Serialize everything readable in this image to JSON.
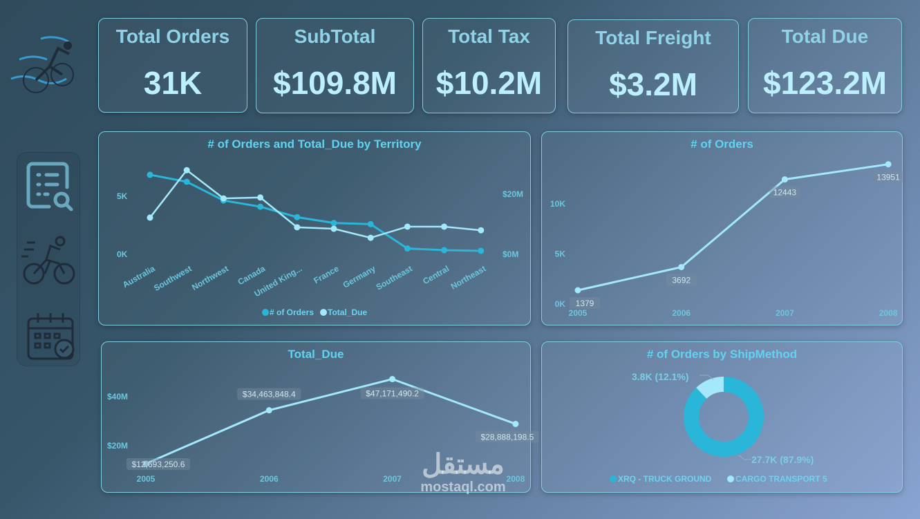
{
  "kpis": [
    {
      "title": "Total Orders",
      "value": "31K"
    },
    {
      "title": "SubTotal",
      "value": "$109.8M"
    },
    {
      "title": "Total Tax",
      "value": "$10.2M"
    },
    {
      "title": "Total Freight",
      "value": "$3.2M"
    },
    {
      "title": "Total Due",
      "value": "$123.2M"
    }
  ],
  "sidebar": {
    "icons": [
      "report-search-icon",
      "cyclist-icon",
      "calendar-check-icon"
    ]
  },
  "watermark": {
    "arabic": "مستقل",
    "latin": "mostaql.com"
  },
  "colors": {
    "primary": "#29b6d9",
    "secondary": "#a4e8fb",
    "title": "#5fd3f0",
    "border": "#7fcfe0"
  },
  "chart_data": [
    {
      "type": "line",
      "title": "# of Orders and Total_Due by Territory",
      "categories": [
        "Australia",
        "Southwest",
        "Northwest",
        "Canada",
        "United King...",
        "France",
        "Germany",
        "Southeast",
        "Central",
        "Northeast"
      ],
      "series": [
        {
          "name": "# of Orders",
          "axis": "left",
          "color": "#29b6d9",
          "values": [
            6850,
            6250,
            4640,
            4100,
            3200,
            2700,
            2600,
            500,
            360,
            300
          ]
        },
        {
          "name": "Total_Due",
          "axis": "right",
          "color": "#a4e8fb",
          "values": [
            12200000,
            28000000,
            18600000,
            18900000,
            9000000,
            8500000,
            5500000,
            9200000,
            9200000,
            8000000
          ]
        }
      ],
      "left_ticks": [
        "0K",
        "5K"
      ],
      "right_ticks": [
        "$0M",
        "$20M"
      ],
      "legend": "bottom"
    },
    {
      "type": "line",
      "title": "# of Orders",
      "categories": [
        "2005",
        "2006",
        "2007",
        "2008"
      ],
      "values": [
        1379,
        3692,
        12443,
        13951
      ],
      "labels": [
        "1379",
        "3692",
        "12443",
        "13951"
      ],
      "y_ticks": [
        "0K",
        "5K",
        "10K"
      ]
    },
    {
      "type": "line",
      "title": "Total_Due",
      "categories": [
        "2005",
        "2006",
        "2007",
        "2008"
      ],
      "values": [
        12693250.6,
        34463848.4,
        47171490.2,
        28888198.5
      ],
      "labels": [
        "$12,693,250.6",
        "$34,463,848.4",
        "$47,171,490.2",
        "$28,888,198.5"
      ],
      "y_ticks": [
        "$20M",
        "$40M"
      ]
    },
    {
      "type": "pie",
      "title": "# of Orders by ShipMethod",
      "donut": true,
      "slices": [
        {
          "name": "XRQ - TRUCK GROUND",
          "value": 27700,
          "percent": 87.9,
          "label": "27.7K (87.9%)",
          "color": "#29b6d9"
        },
        {
          "name": "CARGO TRANSPORT 5",
          "value": 3800,
          "percent": 12.1,
          "label": "3.8K (12.1%)",
          "color": "#a4e8fb"
        }
      ],
      "legend": "bottom"
    }
  ]
}
